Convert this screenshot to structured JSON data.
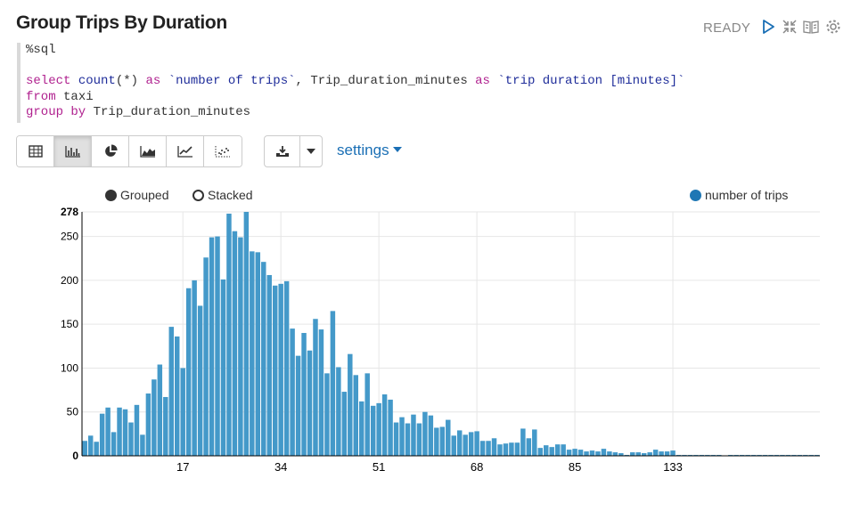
{
  "paragraph": {
    "title": "Group Trips By Duration",
    "status": "READY",
    "code": {
      "line1": "%sql",
      "line3": {
        "k1": "select",
        "f1": "count",
        "p1": "(*)",
        "k2": "as",
        "s1": "`number of trips`",
        "p2": ", Trip_duration_minutes ",
        "k3": "as",
        "s2": "`trip duration [minutes]`"
      },
      "line4": {
        "k1": "from",
        "p1": " taxi"
      },
      "line5": {
        "k1": "group by",
        "p1": " Trip_duration_minutes"
      }
    }
  },
  "toolbar": {
    "viz_buttons": [
      "table-icon",
      "bar-chart-icon",
      "pie-chart-icon",
      "area-chart-icon",
      "line-chart-icon",
      "scatter-chart-icon"
    ],
    "active_viz": "bar-chart-icon",
    "download_icon": "download-icon",
    "caret_icon": "caret-down-icon",
    "settings_label": "settings"
  },
  "legend": {
    "grouped_label": "Grouped",
    "stacked_label": "Stacked",
    "mode": "Grouped",
    "series_label": "number of trips"
  },
  "colors": {
    "bar": "#4499c9",
    "series_dot": "#1f77b4",
    "accent": "#1a6fb5"
  },
  "chart_data": {
    "type": "bar",
    "title": "",
    "xlabel": "",
    "ylabel": "",
    "ylim": [
      0,
      278
    ],
    "y_ticks": [
      0,
      50,
      100,
      150,
      200,
      250,
      278
    ],
    "x_tick_labels": [
      {
        "index": 17,
        "label": "17"
      },
      {
        "index": 34,
        "label": "34"
      },
      {
        "index": 51,
        "label": "51"
      },
      {
        "index": 68,
        "label": "68"
      },
      {
        "index": 85,
        "label": "85"
      },
      {
        "index": 102,
        "label": "133"
      }
    ],
    "grid": true,
    "series": [
      {
        "name": "number of trips",
        "values": [
          17,
          23,
          16,
          48,
          55,
          27,
          55,
          53,
          38,
          58,
          24,
          71,
          87,
          104,
          67,
          147,
          136,
          100,
          191,
          200,
          171,
          226,
          249,
          250,
          201,
          276,
          256,
          249,
          278,
          233,
          232,
          221,
          206,
          194,
          196,
          199,
          145,
          114,
          140,
          120,
          156,
          144,
          94,
          165,
          101,
          73,
          116,
          92,
          62,
          94,
          57,
          60,
          70,
          64,
          38,
          44,
          37,
          47,
          37,
          50,
          46,
          32,
          33,
          41,
          23,
          29,
          24,
          27,
          28,
          17,
          17,
          20,
          13,
          14,
          15,
          15,
          31,
          20,
          30,
          9,
          12,
          10,
          13,
          13,
          7,
          8,
          7,
          5,
          6,
          5,
          8,
          5,
          4,
          3,
          1,
          4,
          4,
          3,
          4,
          7,
          5,
          5,
          6,
          1,
          1,
          1,
          1,
          1,
          1,
          1,
          1,
          0,
          1,
          1,
          1,
          1,
          1,
          1,
          1,
          1,
          1,
          1,
          1,
          1,
          1,
          1,
          1,
          1
        ]
      }
    ]
  }
}
